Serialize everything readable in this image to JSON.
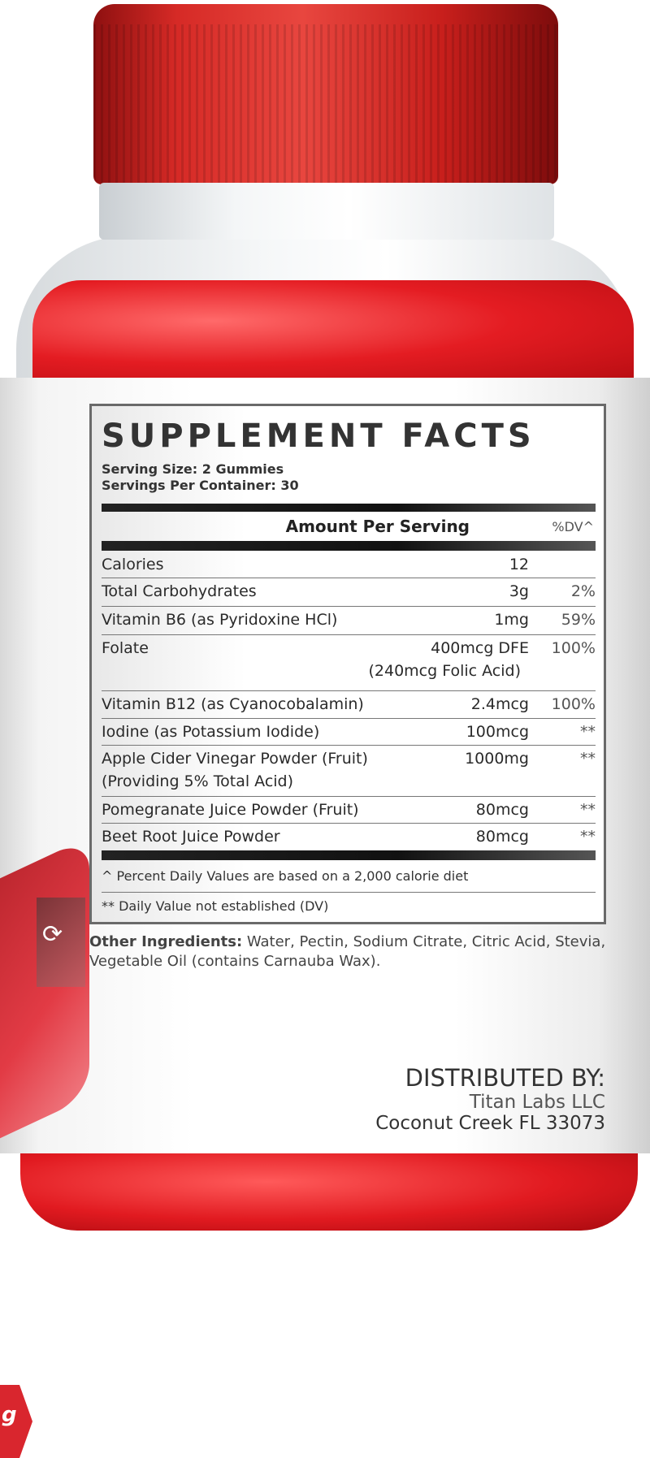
{
  "facts": {
    "title": "SUPPLEMENT FACTS",
    "serving_size": "Serving Size: 2 Gummies",
    "servings_per_container": "Servings Per Container: 30",
    "header_amount": "Amount Per Serving",
    "header_dv": "%DV^",
    "rows": [
      {
        "name": "Calories",
        "amount": "12",
        "dv": ""
      },
      {
        "name": "Total Carbohydrates",
        "amount": "3g",
        "dv": "2%"
      },
      {
        "name": "Vitamin B6 (as Pyridoxine HCl)",
        "amount": "1mg",
        "dv": "59%"
      },
      {
        "name": "Folate",
        "amount": "400mcg DFE",
        "amount2": "(240mcg Folic Acid)",
        "dv": "100%"
      },
      {
        "name": "Vitamin B12 (as Cyanocobalamin)",
        "amount": "2.4mcg",
        "dv": "100%"
      },
      {
        "name": "Iodine (as Potassium Iodide)",
        "amount": "100mcg",
        "dv": "**"
      },
      {
        "name": "Apple Cider Vinegar Powder (Fruit)",
        "name2": "(Providing 5% Total Acid)",
        "amount": "1000mg",
        "dv": "**"
      },
      {
        "name": "Pomegranate Juice Powder (Fruit)",
        "amount": "80mcg",
        "dv": "**"
      },
      {
        "name": "Beet Root Juice Powder",
        "amount": "80mcg",
        "dv": "**"
      }
    ],
    "footnote1": "^ Percent Daily Values are based on a 2,000 calorie diet",
    "footnote2": "** Daily Value not established (DV)"
  },
  "other_ingredients": {
    "label": "Other Ingredients:",
    "text": " Water, Pectin, Sodium Citrate, Citric Acid, Stevia, Vegetable Oil (contains Carnauba Wax)."
  },
  "distributor": {
    "heading": "DISTRIBUTED BY:",
    "name": "Titan Labs LLC",
    "address": "Coconut Creek FL 33073"
  },
  "side_fragment": "g",
  "colors": {
    "cap": "#d62a26",
    "gummies": "#e41c22"
  }
}
